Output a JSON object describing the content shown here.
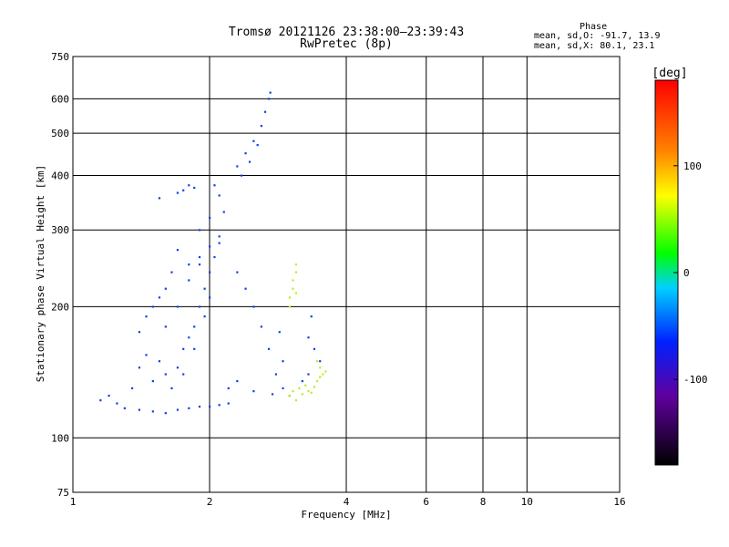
{
  "chart_data": {
    "type": "scatter",
    "title": "Tromsø 20121126 23:38:00–23:39:43",
    "subtitle": "RwPretec (8p)",
    "xlabel": "Frequency [MHz]",
    "ylabel": "Stationary phase Virtual Height [km]",
    "x_scale": "log",
    "y_scale": "log",
    "xlim": [
      1,
      16
    ],
    "ylim": [
      75,
      750
    ],
    "x_ticks": [
      "1",
      "2",
      "4",
      "6",
      "8",
      "10",
      "16"
    ],
    "x_tick_values": [
      1,
      2,
      4,
      6,
      8,
      10,
      16
    ],
    "y_ticks": [
      "75",
      "100",
      "200",
      "300",
      "400",
      "500",
      "600",
      "750"
    ],
    "y_tick_values": [
      75,
      100,
      200,
      300,
      400,
      500,
      600,
      750
    ],
    "grid": true,
    "colorbar": {
      "label": "[deg]",
      "ticks": [
        "100",
        "0",
        "-100"
      ],
      "tick_values": [
        100,
        0,
        -100
      ],
      "range": [
        -180,
        180
      ]
    },
    "phase_stats": {
      "title": "Phase",
      "line1": "mean, sd,O: -91.7, 13.9",
      "line2": "mean, sd,X:  80.1, 23.1"
    },
    "series": [
      {
        "name": "O",
        "points": [
          [
            1.5,
            115
          ],
          [
            1.6,
            114
          ],
          [
            1.7,
            116
          ],
          [
            1.8,
            117
          ],
          [
            1.9,
            118
          ],
          [
            2.0,
            118
          ],
          [
            2.1,
            119
          ],
          [
            2.2,
            120
          ],
          [
            1.3,
            117
          ],
          [
            1.4,
            116
          ],
          [
            1.55,
            150
          ],
          [
            1.6,
            140
          ],
          [
            1.7,
            145
          ],
          [
            1.75,
            160
          ],
          [
            1.8,
            170
          ],
          [
            1.85,
            180
          ],
          [
            1.9,
            200
          ],
          [
            1.95,
            220
          ],
          [
            2.0,
            240
          ],
          [
            2.05,
            260
          ],
          [
            2.1,
            290
          ],
          [
            2.15,
            330
          ],
          [
            2.1,
            360
          ],
          [
            2.05,
            380
          ],
          [
            1.6,
            180
          ],
          [
            1.7,
            200
          ],
          [
            1.8,
            230
          ],
          [
            1.9,
            250
          ],
          [
            2.0,
            210
          ],
          [
            1.95,
            190
          ],
          [
            1.85,
            160
          ],
          [
            1.75,
            140
          ],
          [
            1.65,
            130
          ],
          [
            1.5,
            135
          ],
          [
            1.45,
            155
          ],
          [
            1.4,
            145
          ],
          [
            1.35,
            130
          ],
          [
            1.25,
            120
          ],
          [
            1.2,
            125
          ],
          [
            1.15,
            122
          ],
          [
            2.3,
            420
          ],
          [
            2.4,
            450
          ],
          [
            2.5,
            480
          ],
          [
            2.6,
            520
          ],
          [
            2.65,
            560
          ],
          [
            2.7,
            600
          ],
          [
            2.72,
            620
          ],
          [
            2.35,
            400
          ],
          [
            2.45,
            430
          ],
          [
            2.55,
            470
          ],
          [
            2.3,
            240
          ],
          [
            2.4,
            220
          ],
          [
            2.5,
            200
          ],
          [
            2.6,
            180
          ],
          [
            2.7,
            160
          ],
          [
            2.8,
            140
          ],
          [
            2.9,
            130
          ],
          [
            3.0,
            125
          ],
          [
            2.2,
            130
          ],
          [
            2.3,
            135
          ],
          [
            2.5,
            128
          ],
          [
            2.75,
            126
          ],
          [
            2.85,
            175
          ],
          [
            2.9,
            150
          ],
          [
            3.3,
            170
          ],
          [
            3.4,
            160
          ],
          [
            3.5,
            150
          ],
          [
            3.3,
            140
          ],
          [
            3.2,
            135
          ],
          [
            3.35,
            190
          ],
          [
            1.85,
            375
          ],
          [
            1.7,
            365
          ],
          [
            1.75,
            370
          ],
          [
            1.8,
            380
          ],
          [
            1.55,
            355
          ],
          [
            1.9,
            300
          ],
          [
            2.0,
            320
          ],
          [
            2.1,
            280
          ],
          [
            1.7,
            270
          ],
          [
            1.8,
            250
          ],
          [
            1.9,
            260
          ],
          [
            2.0,
            275
          ],
          [
            1.65,
            240
          ],
          [
            1.6,
            220
          ],
          [
            1.55,
            210
          ],
          [
            1.5,
            200
          ],
          [
            1.45,
            190
          ],
          [
            1.4,
            175
          ]
        ]
      },
      {
        "name": "X",
        "points": [
          [
            3.0,
            125
          ],
          [
            3.05,
            128
          ],
          [
            3.1,
            122
          ],
          [
            3.15,
            130
          ],
          [
            3.2,
            126
          ],
          [
            3.25,
            132
          ],
          [
            3.3,
            128
          ],
          [
            3.35,
            127
          ],
          [
            3.4,
            131
          ],
          [
            3.45,
            135
          ],
          [
            3.5,
            138
          ],
          [
            3.55,
            140
          ],
          [
            3.6,
            142
          ],
          [
            3.05,
            220
          ],
          [
            3.1,
            215
          ],
          [
            3.0,
            210
          ],
          [
            3.05,
            230
          ],
          [
            3.1,
            240
          ],
          [
            3.0,
            200
          ],
          [
            3.1,
            250
          ],
          [
            3.45,
            150
          ],
          [
            3.5,
            145
          ]
        ]
      }
    ]
  }
}
